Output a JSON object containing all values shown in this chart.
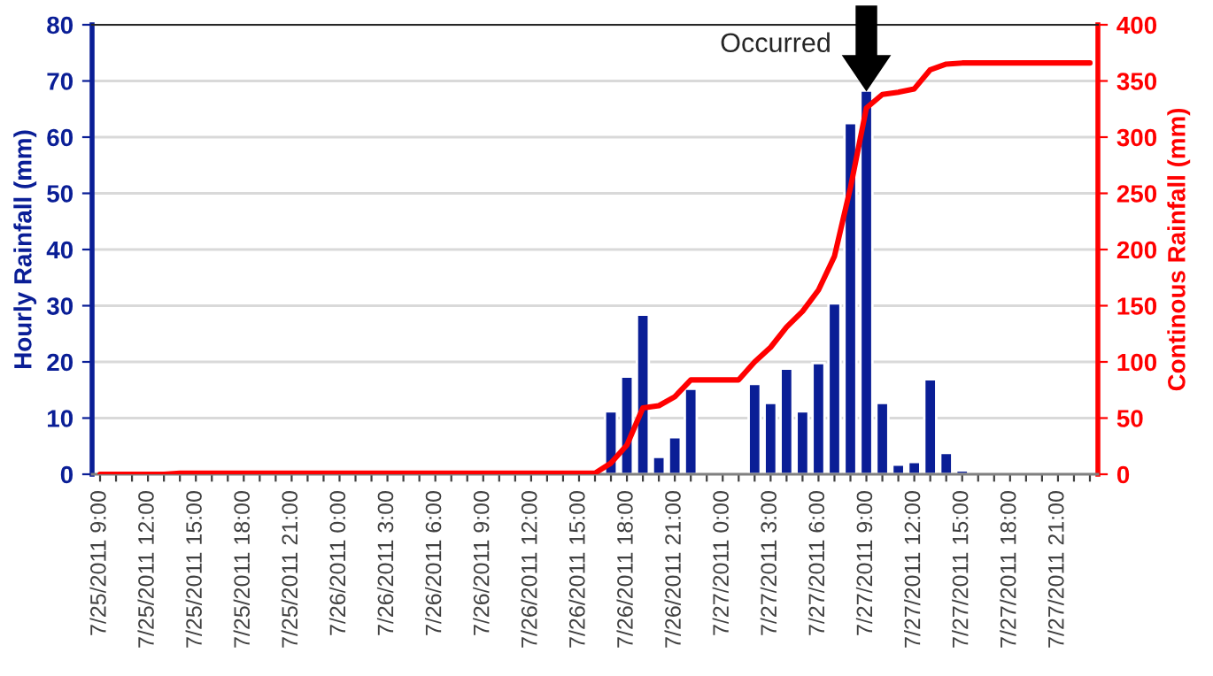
{
  "chart_data": {
    "type": "bar",
    "categories": [
      "7/25/2011 9:00",
      null,
      null,
      "7/25/2011 12:00",
      null,
      null,
      "7/25/2011 15:00",
      null,
      null,
      "7/25/2011 18:00",
      null,
      null,
      "7/25/2011 21:00",
      null,
      null,
      "7/26/2011 0:00",
      null,
      null,
      "7/26/2011 3:00",
      null,
      null,
      "7/26/2011 6:00",
      null,
      null,
      "7/26/2011 9:00",
      null,
      null,
      "7/26/2011 12:00",
      null,
      null,
      "7/26/2011 15:00",
      null,
      null,
      "7/26/2011 18:00",
      null,
      null,
      "7/26/2011 21:00",
      null,
      null,
      "7/27/2011 0:00",
      null,
      null,
      "7/27/2011 3:00",
      null,
      null,
      "7/27/2011 6:00",
      null,
      null,
      "7/27/2011 9:00",
      null,
      null,
      "7/27/2011 12:00",
      null,
      null,
      "7/27/2011 15:00",
      null,
      null,
      "7/27/2011 18:00",
      null,
      null,
      "7/27/2011 21:00",
      null,
      null
    ],
    "series": [
      {
        "axis": "y",
        "color": "#0a1e96",
        "values": [
          null,
          null,
          null,
          null,
          null,
          null,
          null,
          null,
          null,
          null,
          null,
          null,
          null,
          null,
          null,
          null,
          null,
          null,
          null,
          null,
          null,
          null,
          null,
          null,
          null,
          null,
          null,
          null,
          null,
          null,
          null,
          null,
          11.2,
          17.4,
          28.4,
          3.1,
          6.6,
          15.2,
          null,
          null,
          null,
          16.1,
          12.7,
          18.8,
          11.2,
          19.8,
          30.4,
          62.5,
          68.3,
          12.7,
          1.7,
          2.2,
          16.9,
          3.8,
          0.7,
          null,
          null,
          null,
          null,
          null,
          null,
          null,
          null
        ]
      },
      {
        "type": "line",
        "axis": "y2",
        "color": "#ff0000",
        "line_style": "solid",
        "values": [
          0,
          0,
          0,
          0,
          0,
          1,
          1,
          1,
          1,
          1,
          1,
          1,
          1,
          1,
          1,
          1,
          1,
          1,
          1,
          1,
          1,
          1,
          1,
          1,
          1,
          1,
          1,
          1,
          1,
          1,
          1,
          1,
          10,
          26,
          59,
          61,
          69,
          84,
          84,
          84,
          84,
          100,
          113,
          131,
          145,
          164,
          194,
          255,
          326,
          338,
          340,
          343,
          360,
          365,
          366,
          366,
          366,
          366,
          366,
          366,
          366,
          366,
          366
        ]
      }
    ],
    "ylabel": "Hourly Rainfall (mm)",
    "y2label": "Continous Rainfall (mm)",
    "ylim": [
      0,
      80
    ],
    "yticks": [
      0,
      10,
      20,
      30,
      40,
      50,
      60,
      70,
      80
    ],
    "y2lim": [
      0,
      400
    ],
    "y2ticks": [
      0,
      50,
      100,
      150,
      200,
      250,
      300,
      350,
      400
    ],
    "grid": "y",
    "legend": false,
    "annotations": [
      {
        "text": "Occurred",
        "x": "7/27/2011 9:00",
        "y": 68.5
      }
    ]
  }
}
